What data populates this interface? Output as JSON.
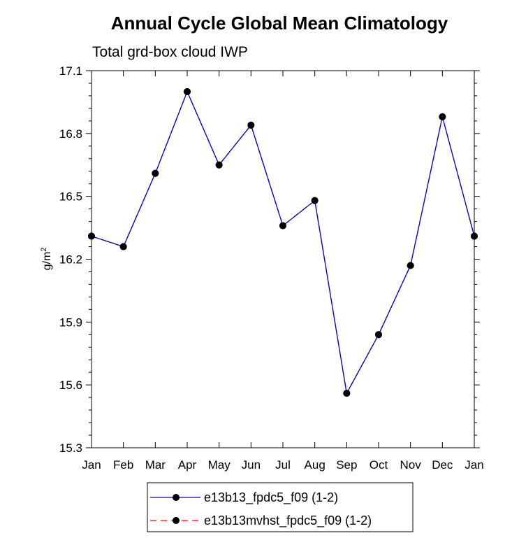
{
  "chart_data": {
    "type": "line",
    "title": "Annual Cycle Global Mean Climatology",
    "subtitle": "Total grd-box cloud IWP",
    "ylabel_base": "g/m",
    "ylabel_sup": "2",
    "xlabel": "",
    "categories": [
      "Jan",
      "Feb",
      "Mar",
      "Apr",
      "May",
      "Jun",
      "Jul",
      "Aug",
      "Sep",
      "Oct",
      "Nov",
      "Dec",
      "Jan"
    ],
    "yticks": [
      "15.3",
      "15.6",
      "15.9",
      "16.2",
      "16.5",
      "16.8",
      "17.1"
    ],
    "ylim": [
      15.3,
      17.1
    ],
    "series": [
      {
        "name": "e13b13_fpdc5_f09 (1-2)",
        "color": "#0000cc",
        "dash": "solid",
        "values": [
          16.31,
          16.26,
          16.61,
          17.0,
          16.65,
          16.84,
          16.36,
          16.48,
          15.56,
          15.84,
          16.17,
          16.88,
          16.31
        ]
      },
      {
        "name": "e13b13mvhst_fpdc5_f09 (1-2)",
        "color": "#ff0000",
        "dash": "dashed",
        "values": [
          16.31,
          16.26,
          16.61,
          17.0,
          16.65,
          16.84,
          16.36,
          16.48,
          15.56,
          15.84,
          16.17,
          16.88,
          16.31
        ]
      }
    ],
    "marker_color": "#000000",
    "legend_position": "bottom-center"
  }
}
